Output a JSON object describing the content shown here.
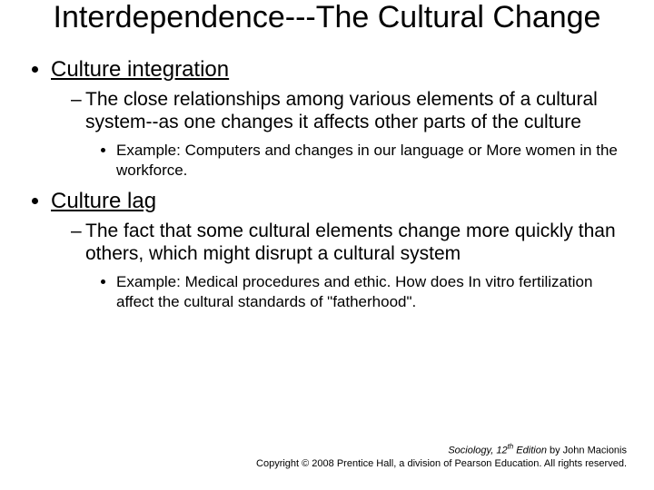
{
  "title": "Interdependence---The Cultural Change",
  "bullets": [
    {
      "head": "Culture integration",
      "sub": "The close relationships among various elements of a cultural system--as one changes it affects other parts of the culture",
      "example": "Example: Computers and changes in our language  or More women in the workforce."
    },
    {
      "head": "Culture lag",
      "sub": "The fact that some cultural elements change more quickly than others, which might disrupt a cultural system",
      "example": "Example: Medical procedures and ethic. How does In vitro fertilization affect the cultural standards of \"fatherhood\"."
    }
  ],
  "footer": {
    "book": "Sociology, 12",
    "edition_sup": "th",
    "edition_after": " Edition",
    "author": " by John Macionis",
    "copyright": "Copyright © 2008 Prentice Hall, a division of Pearson Education.  All rights reserved."
  },
  "colors": {
    "background": "#ffffff",
    "text": "#000000"
  }
}
